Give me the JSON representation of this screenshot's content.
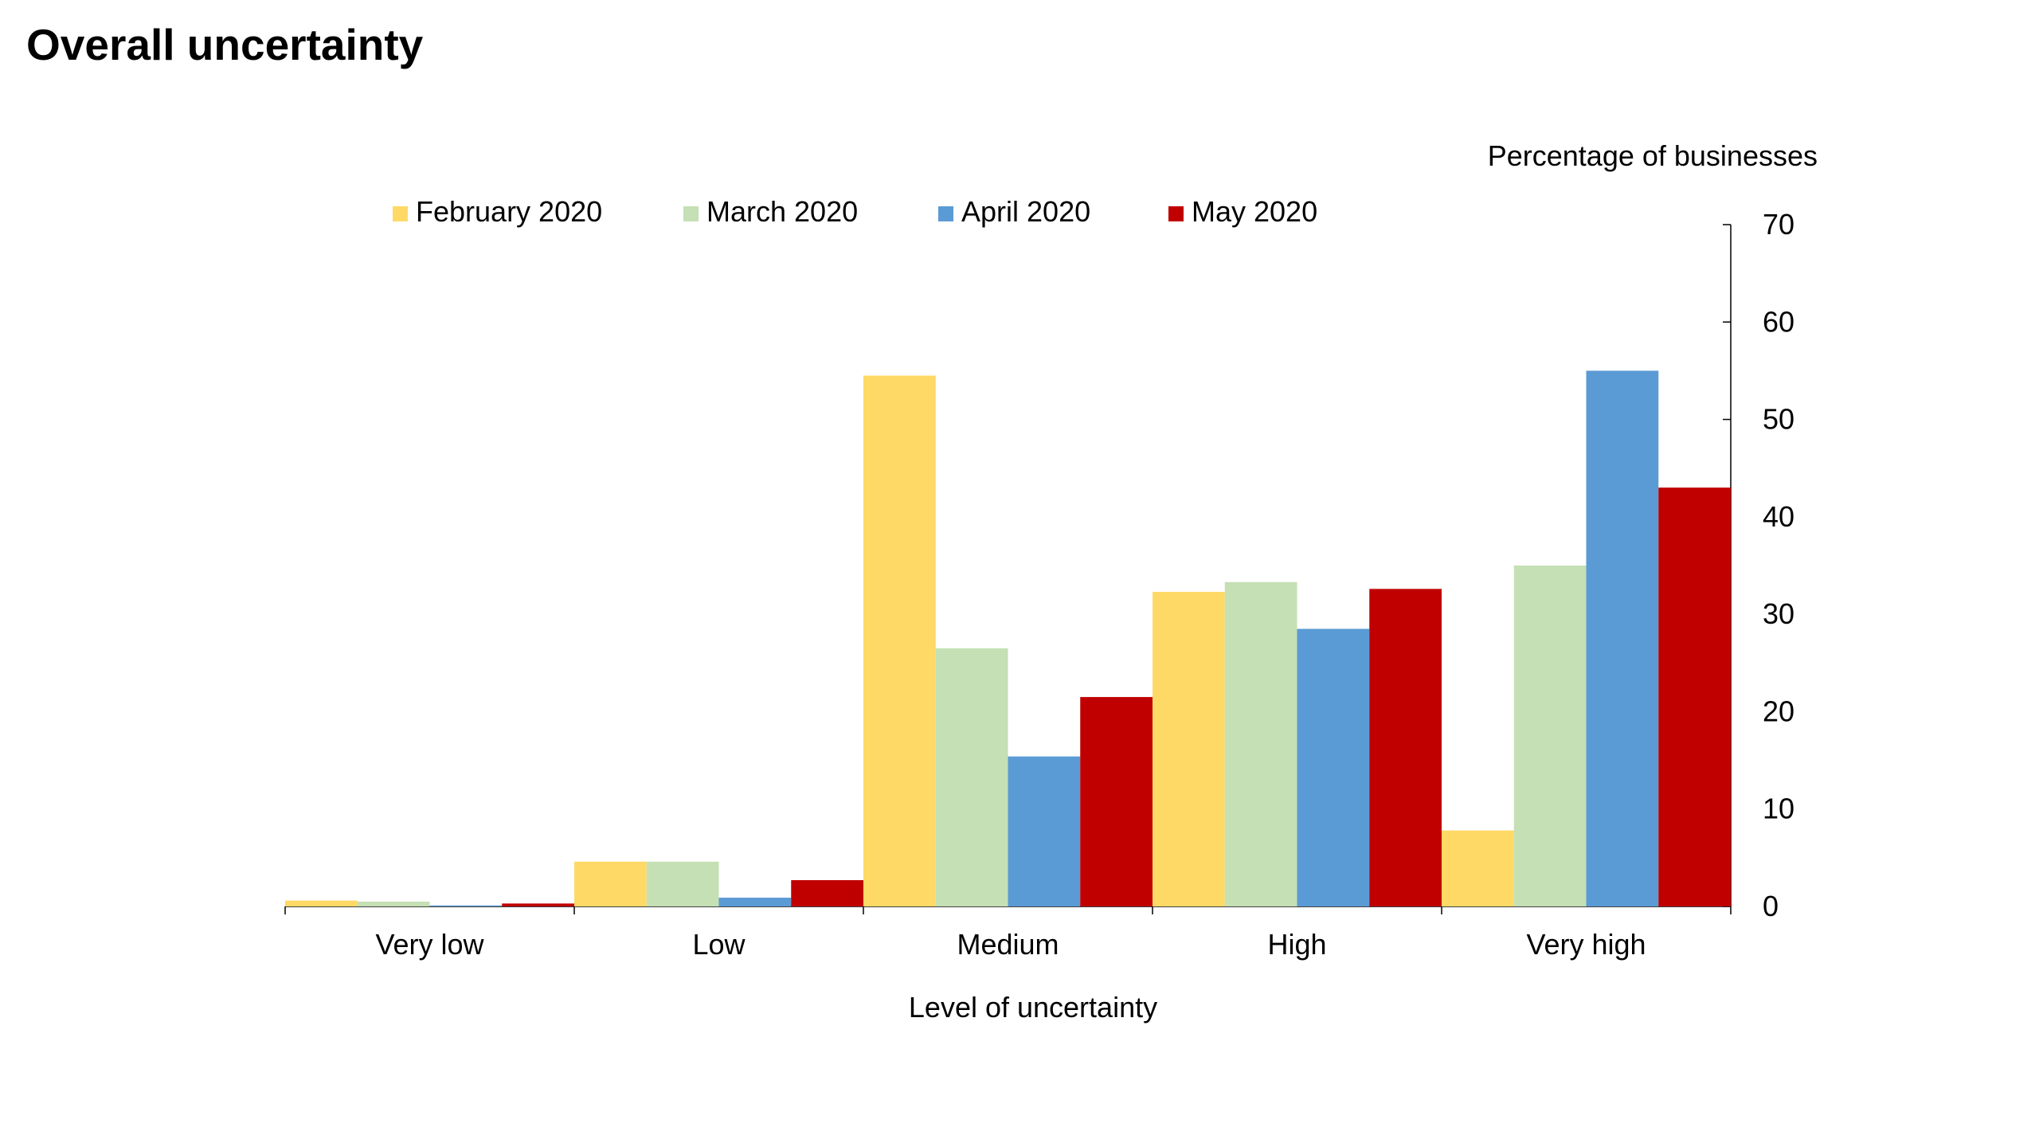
{
  "chart_data": {
    "type": "bar",
    "title": "Overall uncertainty",
    "xlabel": "Level of uncertainty",
    "ylabel": "Percentage of businesses",
    "ylim": [
      0,
      70
    ],
    "yticks": [
      "0",
      "10",
      "20",
      "30",
      "40",
      "50",
      "60",
      "70"
    ],
    "y_axis_side": "right",
    "legend_position": "top",
    "grid": false,
    "categories": [
      "Very low",
      "Low",
      "Medium",
      "High",
      "Very high"
    ],
    "series": [
      {
        "name": "February 2020",
        "color": "#FFD966",
        "values": [
          0.6,
          4.6,
          54.5,
          32.3,
          7.8
        ]
      },
      {
        "name": "March 2020",
        "color": "#C5E0B4",
        "values": [
          0.5,
          4.6,
          26.5,
          33.3,
          35.0
        ]
      },
      {
        "name": "April 2020",
        "color": "#5B9BD5",
        "values": [
          0.1,
          0.9,
          15.4,
          28.5,
          55.0
        ]
      },
      {
        "name": "May 2020",
        "color": "#C00000",
        "values": [
          0.3,
          2.7,
          21.5,
          32.6,
          43.0
        ]
      }
    ]
  }
}
